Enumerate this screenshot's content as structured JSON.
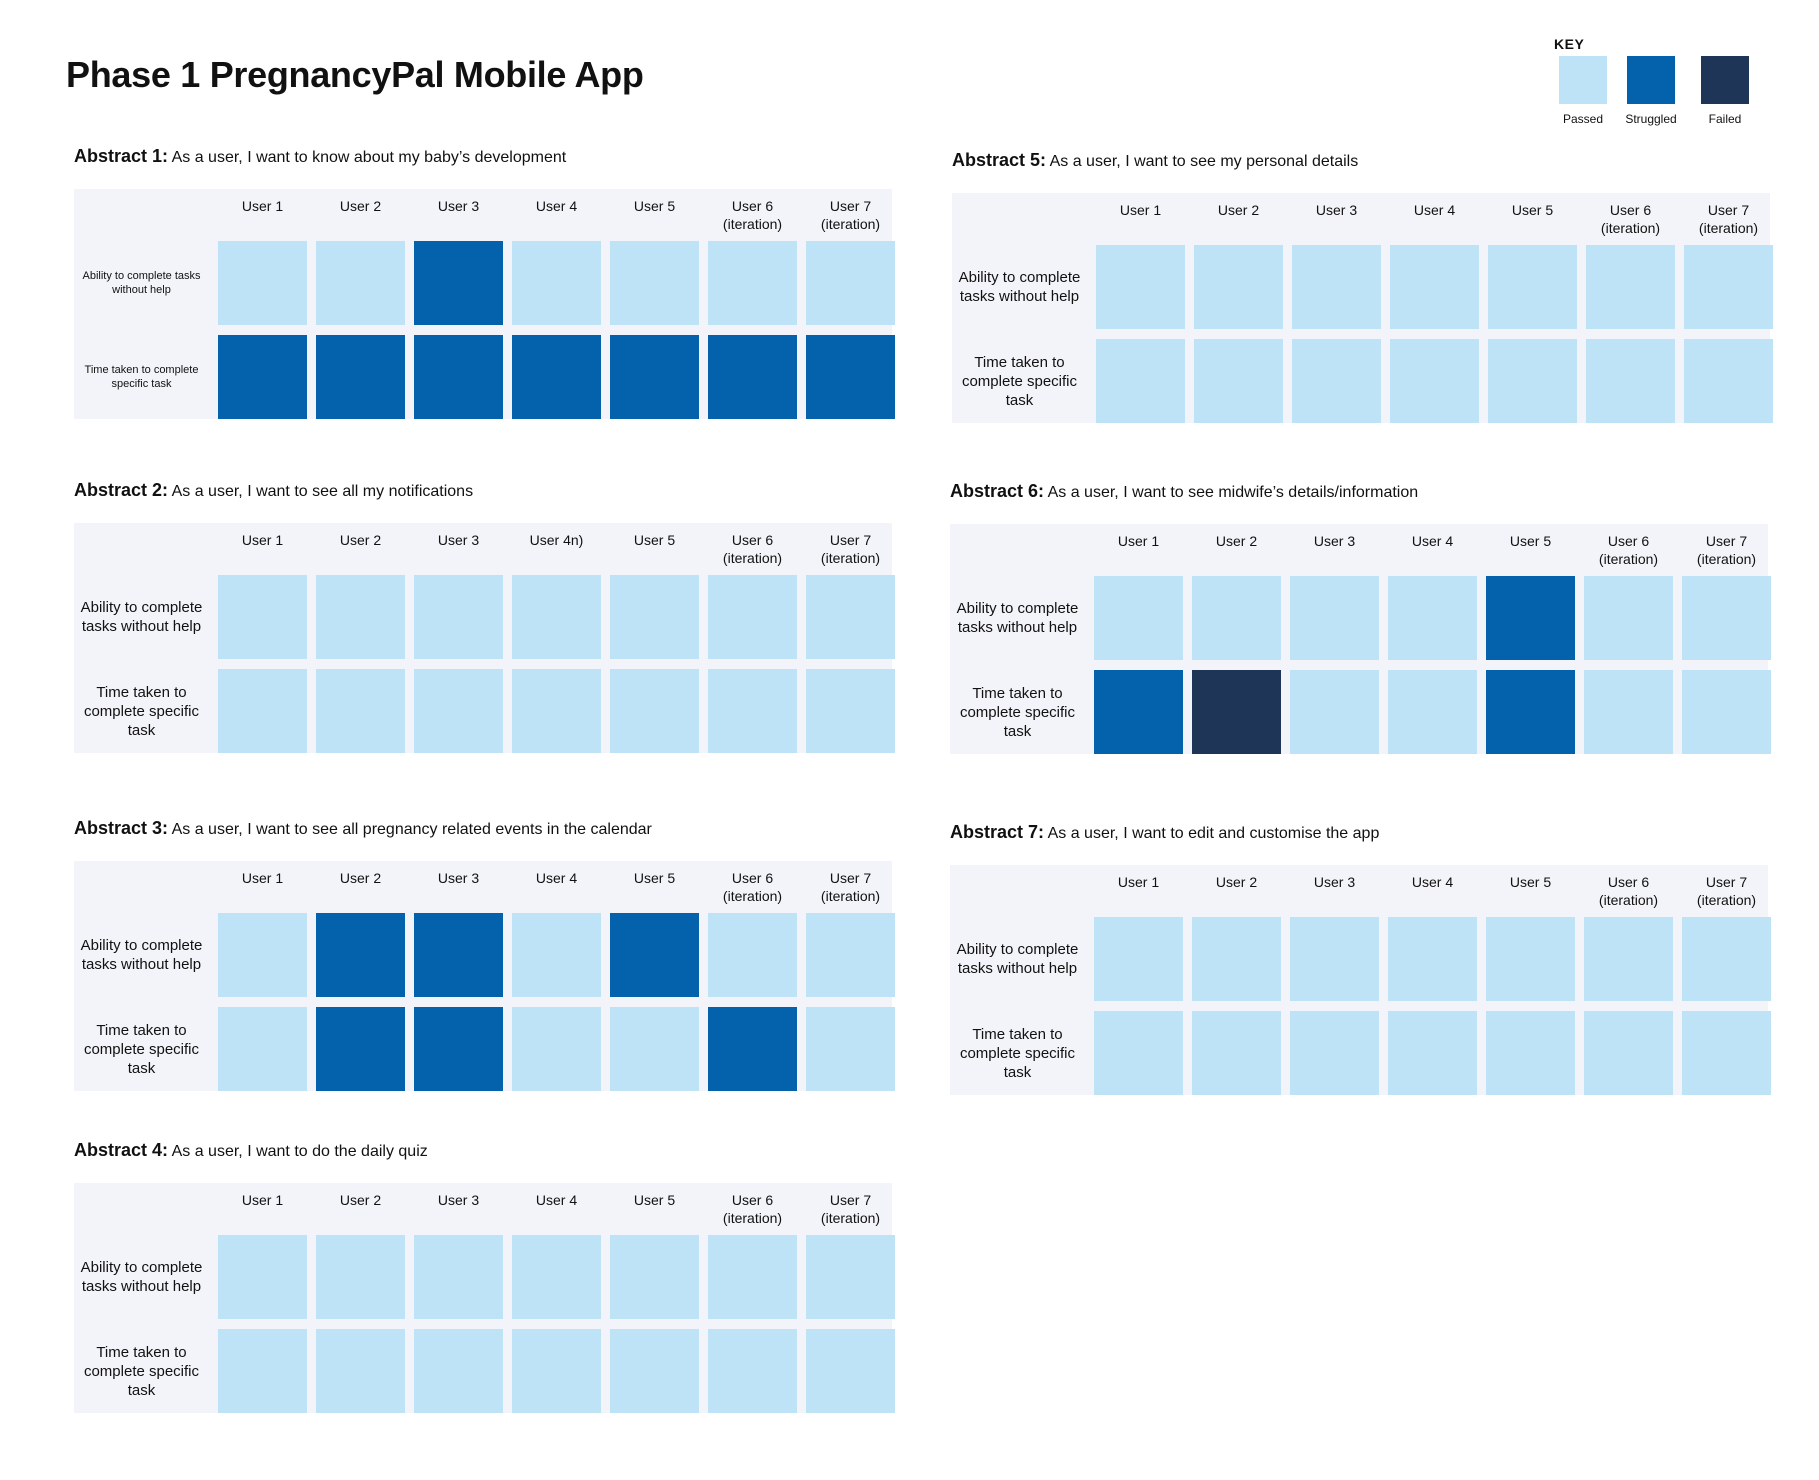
{
  "page": {
    "title": "Phase 1 PregnancyPal Mobile App"
  },
  "legend": {
    "title": "KEY",
    "items": [
      {
        "label": "Passed",
        "status": "passed",
        "color": "#bee3f7"
      },
      {
        "label": "Struggled",
        "status": "struggled",
        "color": "#0462ac"
      },
      {
        "label": "Failed",
        "status": "failed",
        "color": "#1f3558"
      }
    ]
  },
  "status_colors": {
    "passed": "#bee3f7",
    "struggled": "#0462ac",
    "failed": "#1f3558"
  },
  "abstracts": [
    {
      "label": "Abstract 1:",
      "story": "As a user, I want to know about my baby’s development",
      "columns": [
        "User 1",
        "User 2",
        "User 3",
        "User 4",
        "User 5",
        "User 6\n(iteration)",
        "User 7\n(iteration)"
      ],
      "rows": [
        {
          "label": "Ability to complete tasks without help",
          "cells": [
            "passed",
            "passed",
            "struggled",
            "passed",
            "passed",
            "passed",
            "passed"
          ]
        },
        {
          "label": "Time taken to complete specific task",
          "cells": [
            "struggled",
            "struggled",
            "struggled",
            "struggled",
            "struggled",
            "struggled",
            "struggled"
          ]
        }
      ]
    },
    {
      "label": "Abstract 2:",
      "story": "As a user, I want to see all my notifications",
      "columns": [
        "User 1",
        "User 2",
        "User 3",
        "User 4n)",
        "User 5",
        "User 6\n(iteration)",
        "User 7\n(iteration)"
      ],
      "rows": [
        {
          "label": "Ability to complete tasks without help",
          "cells": [
            "passed",
            "passed",
            "passed",
            "passed",
            "passed",
            "passed",
            "passed"
          ]
        },
        {
          "label": "Time taken to complete specific task",
          "cells": [
            "passed",
            "passed",
            "passed",
            "passed",
            "passed",
            "passed",
            "passed"
          ]
        }
      ]
    },
    {
      "label": "Abstract 3:",
      "story": "As a user, I want to see all pregnancy related events in the calendar",
      "columns": [
        "User 1",
        "User 2",
        "User 3",
        "User 4",
        "User 5",
        "User 6\n(iteration)",
        "User 7\n(iteration)"
      ],
      "rows": [
        {
          "label": "Ability to complete tasks without help",
          "cells": [
            "passed",
            "struggled",
            "struggled",
            "passed",
            "struggled",
            "passed",
            "passed"
          ]
        },
        {
          "label": "Time taken to complete specific task",
          "cells": [
            "passed",
            "struggled",
            "struggled",
            "passed",
            "passed",
            "struggled",
            "passed"
          ]
        }
      ]
    },
    {
      "label": "Abstract 4:",
      "story": "As a user, I want to do the daily quiz",
      "columns": [
        "User 1",
        "User 2",
        "User 3",
        "User 4",
        "User 5",
        "User 6\n(iteration)",
        "User 7\n(iteration)"
      ],
      "rows": [
        {
          "label": "Ability to complete tasks without help",
          "cells": [
            "passed",
            "passed",
            "passed",
            "passed",
            "passed",
            "passed",
            "passed"
          ]
        },
        {
          "label": "Time taken to complete specific task",
          "cells": [
            "passed",
            "passed",
            "passed",
            "passed",
            "passed",
            "passed",
            "passed"
          ]
        }
      ]
    },
    {
      "label": "Abstract 5:",
      "story": "As a user, I want to see my personal details",
      "columns": [
        "User 1",
        "User 2",
        "User 3",
        "User 4",
        "User 5",
        "User 6\n(iteration)",
        "User 7\n(iteration)"
      ],
      "rows": [
        {
          "label": "Ability to complete tasks without help",
          "cells": [
            "passed",
            "passed",
            "passed",
            "passed",
            "passed",
            "passed",
            "passed"
          ]
        },
        {
          "label": "Time taken to complete specific task",
          "cells": [
            "passed",
            "passed",
            "passed",
            "passed",
            "passed",
            "passed",
            "passed"
          ]
        }
      ]
    },
    {
      "label": "Abstract 6:",
      "story": "As a user, I want to see midwife’s details/information",
      "columns": [
        "User 1",
        "User 2",
        "User 3",
        "User 4",
        "User 5",
        "User 6\n(iteration)",
        "User 7\n(iteration)"
      ],
      "rows": [
        {
          "label": "Ability to complete tasks without help",
          "cells": [
            "passed",
            "passed",
            "passed",
            "passed",
            "struggled",
            "passed",
            "passed"
          ]
        },
        {
          "label": "Time taken to complete specific task",
          "cells": [
            "struggled",
            "failed",
            "passed",
            "passed",
            "struggled",
            "passed",
            "passed"
          ]
        }
      ]
    },
    {
      "label": "Abstract 7:",
      "story": "As a user, I want to edit and customise the app",
      "columns": [
        "User 1",
        "User 2",
        "User 3",
        "User 4",
        "User 5",
        "User 6\n(iteration)",
        "User 7\n(iteration)"
      ],
      "rows": [
        {
          "label": "Ability to complete tasks without help",
          "cells": [
            "passed",
            "passed",
            "passed",
            "passed",
            "passed",
            "passed",
            "passed"
          ]
        },
        {
          "label": "Time taken to complete specific task",
          "cells": [
            "passed",
            "passed",
            "passed",
            "passed",
            "passed",
            "passed",
            "passed"
          ]
        }
      ]
    }
  ]
}
